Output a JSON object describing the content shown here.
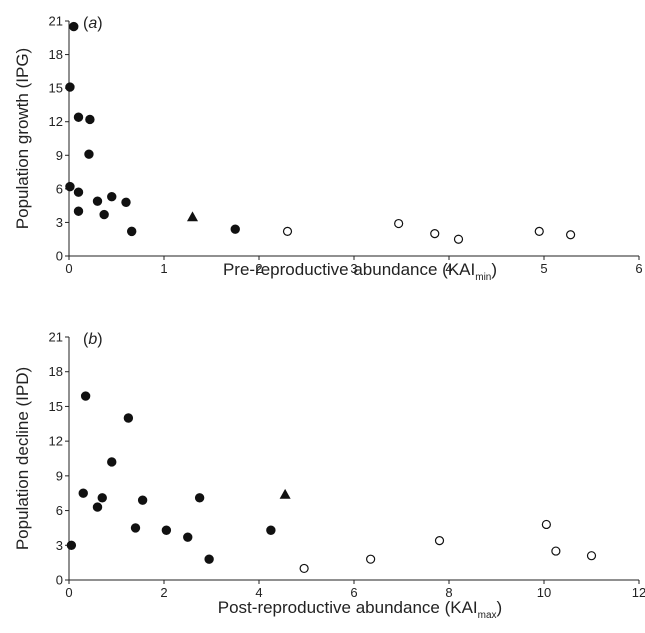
{
  "chart_data": [
    {
      "type": "scatter",
      "panel_label": {
        "open": "(",
        "letter": "a",
        "close": ")"
      },
      "xlabel": {
        "main": "Pre-reproductive abundance (KAI",
        "sub": "min",
        "close": ")"
      },
      "ylabel": "Population growth (IPG)",
      "xlim": [
        0,
        6
      ],
      "ylim": [
        0,
        21
      ],
      "xticks": [
        "0",
        "1",
        "2",
        "3",
        "4",
        "5",
        "6"
      ],
      "yticks": [
        "0",
        "3",
        "6",
        "9",
        "12",
        "15",
        "18",
        "21"
      ],
      "series": [
        {
          "marker": "filled-circle",
          "color": "#111111",
          "points": [
            [
              0.05,
              20.5
            ],
            [
              0.01,
              15.1
            ],
            [
              0.1,
              12.4
            ],
            [
              0.22,
              12.2
            ],
            [
              0.21,
              9.1
            ],
            [
              0.01,
              6.2
            ],
            [
              0.1,
              5.7
            ],
            [
              0.1,
              4.0
            ],
            [
              0.3,
              4.9
            ],
            [
              0.45,
              5.3
            ],
            [
              0.6,
              4.8
            ],
            [
              0.37,
              3.7
            ],
            [
              0.66,
              2.2
            ],
            [
              1.75,
              2.4
            ]
          ]
        },
        {
          "marker": "filled-triangle",
          "color": "#111111",
          "points": [
            [
              1.3,
              3.5
            ]
          ]
        },
        {
          "marker": "open-circle",
          "color": "#111111",
          "points": [
            [
              2.3,
              2.2
            ],
            [
              3.47,
              2.9
            ],
            [
              3.85,
              2.0
            ],
            [
              4.1,
              1.5
            ],
            [
              4.95,
              2.2
            ],
            [
              5.28,
              1.9
            ]
          ]
        }
      ]
    },
    {
      "type": "scatter",
      "panel_label": {
        "open": "(",
        "letter": "b",
        "close": ")"
      },
      "xlabel": {
        "main": "Post-reproductive abundance (KAI",
        "sub": "max",
        "close": ")"
      },
      "ylabel": "Population decline (IPD)",
      "xlim": [
        0,
        12
      ],
      "ylim": [
        0,
        21
      ],
      "xticks": [
        "0",
        "2",
        "4",
        "6",
        "8",
        "10",
        "12"
      ],
      "yticks": [
        "0",
        "3",
        "6",
        "9",
        "12",
        "15",
        "18",
        "21"
      ],
      "series": [
        {
          "marker": "filled-circle",
          "color": "#111111",
          "points": [
            [
              0.05,
              3.0
            ],
            [
              0.35,
              15.9
            ],
            [
              0.3,
              7.5
            ],
            [
              0.6,
              6.3
            ],
            [
              0.7,
              7.1
            ],
            [
              0.9,
              10.2
            ],
            [
              1.25,
              14.0
            ],
            [
              1.4,
              4.5
            ],
            [
              1.55,
              6.9
            ],
            [
              2.05,
              4.3
            ],
            [
              2.5,
              3.7
            ],
            [
              2.75,
              7.1
            ],
            [
              2.95,
              1.8
            ],
            [
              4.25,
              4.3
            ]
          ]
        },
        {
          "marker": "filled-triangle",
          "color": "#111111",
          "points": [
            [
              4.55,
              7.4
            ]
          ]
        },
        {
          "marker": "open-circle",
          "color": "#111111",
          "points": [
            [
              4.95,
              1.0
            ],
            [
              6.35,
              1.8
            ],
            [
              7.8,
              3.4
            ],
            [
              10.05,
              4.8
            ],
            [
              10.25,
              2.5
            ],
            [
              11.0,
              2.1
            ]
          ]
        }
      ]
    }
  ]
}
